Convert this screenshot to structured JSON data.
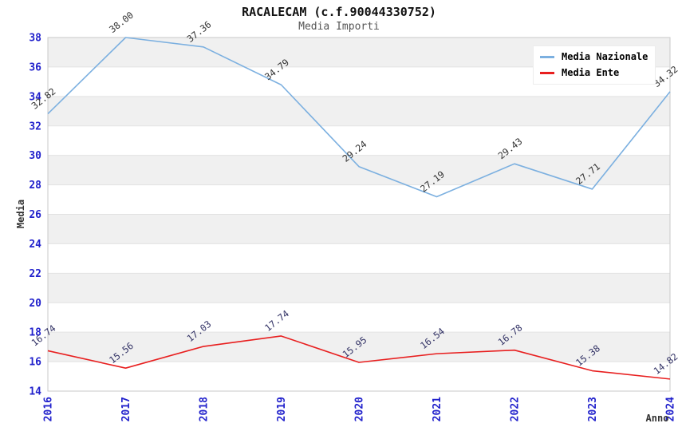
{
  "header": {
    "title": "RACALECAM (c.f.90044330752)",
    "subtitle": "Media Importi"
  },
  "legend": {
    "items": [
      {
        "label": "Media Nazionale",
        "color": "#7cb0e0"
      },
      {
        "label": "Media Ente",
        "color": "#e81f1f"
      }
    ]
  },
  "chart_data": {
    "type": "line",
    "title": "RACALECAM (c.f.90044330752)",
    "subtitle": "Media Importi",
    "xlabel": "Anno",
    "ylabel": "Media",
    "categories": [
      "2016",
      "2017",
      "2018",
      "2019",
      "2020",
      "2021",
      "2022",
      "2023",
      "2024"
    ],
    "series": [
      {
        "name": "Media Nazionale",
        "color": "#7cb0e0",
        "label_color": "#333333",
        "values": [
          32.82,
          38.0,
          37.36,
          34.79,
          29.24,
          27.19,
          29.43,
          27.71,
          34.32
        ]
      },
      {
        "name": "Media Ente",
        "color": "#e81f1f",
        "label_color": "#333366",
        "values": [
          16.74,
          15.56,
          17.03,
          17.74,
          15.95,
          16.54,
          16.78,
          15.38,
          14.82
        ]
      }
    ],
    "ylim": [
      14,
      38
    ],
    "ytick_step": 2,
    "grid": "banded",
    "band_color": "#f0f0f0",
    "gridline_color": "#e2e2e2",
    "plot_border_color": "#c9c9c9",
    "tick_color": "#2222cc",
    "legend_position": "top-right",
    "value_label_decimals": 2
  }
}
